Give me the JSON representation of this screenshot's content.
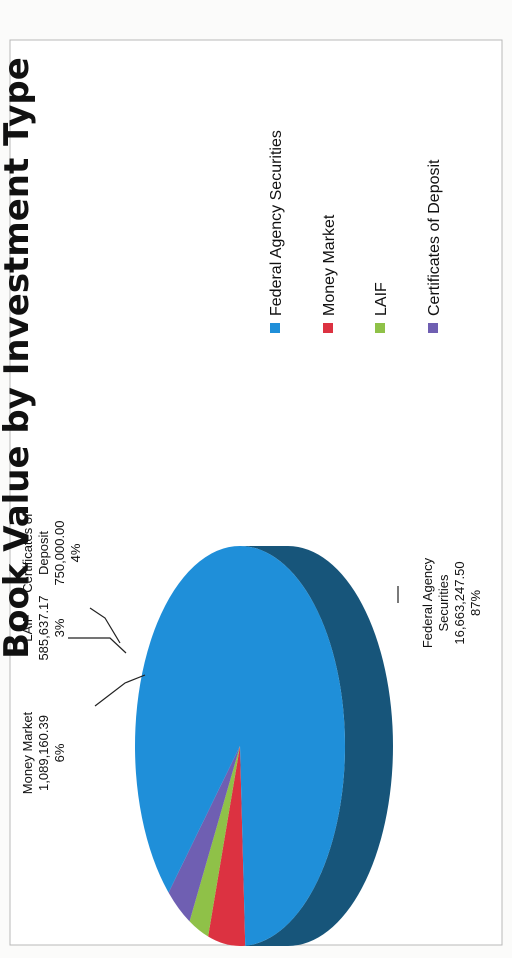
{
  "colors": {
    "federal_agency_securities": "#1f8fd9",
    "money_market": "#dc3241",
    "laif": "#8fc148",
    "certificates_of_deposit": "#6f5fb2",
    "pie_side": "#17557a"
  },
  "chart_data": {
    "type": "pie",
    "title": "Book Value by Investment Type",
    "legend_position": "right",
    "slices": [
      {
        "name": "Federal Agency Securities",
        "value": 16663247.5,
        "value_label": "16,663,247.50",
        "percent_label": "87%",
        "color": "#1f8fd9"
      },
      {
        "name": "Money Market",
        "value": 1089160.39,
        "value_label": "1,089,160.39",
        "percent_label": "6%",
        "color": "#dc3241"
      },
      {
        "name": "LAIF",
        "value": 585637.17,
        "value_label": "585,637.17",
        "percent_label": "3%",
        "color": "#8fc148"
      },
      {
        "name": "Certificates of Deposit",
        "value": 750000.0,
        "value_label": "750,000.00",
        "percent_label": "4%",
        "color": "#6f5fb2"
      }
    ],
    "data_labels": {
      "federal": [
        "Federal Agency",
        "Securities",
        "16,663,247.50",
        "87%"
      ],
      "money_market": [
        "Money Market",
        "1,089,160.39",
        "6%"
      ],
      "laif": [
        "LAIF",
        "585,637.17",
        "3%"
      ],
      "cd": [
        "Certificates of",
        "Deposit",
        "750,000.00",
        "4%"
      ]
    },
    "legend": [
      "Federal Agency Securities",
      "Money Market",
      "LAIF",
      "Certificates of Deposit"
    ]
  }
}
